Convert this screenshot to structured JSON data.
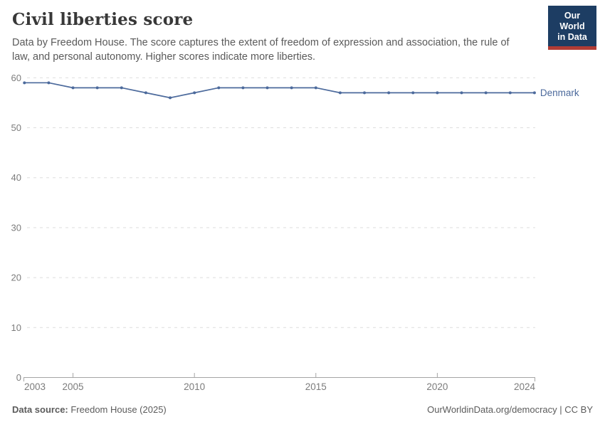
{
  "header": {
    "title": "Civil liberties score",
    "subtitle": "Data by Freedom House. The score captures the extent of freedom of expression and association, the rule of law, and personal autonomy. Higher scores indicate more liberties.",
    "logo": {
      "line1": "Our World",
      "line2": "in Data"
    }
  },
  "chart_data": {
    "type": "line",
    "title": "Civil liberties score",
    "x": [
      2003,
      2004,
      2005,
      2006,
      2007,
      2008,
      2009,
      2010,
      2011,
      2012,
      2013,
      2014,
      2015,
      2016,
      2017,
      2018,
      2019,
      2020,
      2021,
      2022,
      2023,
      2024
    ],
    "series": [
      {
        "name": "Denmark",
        "values": [
          59,
          59,
          58,
          58,
          58,
          57,
          56,
          57,
          58,
          58,
          58,
          58,
          58,
          57,
          57,
          57,
          57,
          57,
          57,
          57,
          57,
          57
        ]
      }
    ],
    "xlabel": "",
    "ylabel": "",
    "ylim": [
      0,
      60
    ],
    "xlim": [
      2003,
      2024
    ],
    "yticks": [
      0,
      10,
      20,
      30,
      40,
      50,
      60
    ],
    "xticks": [
      2003,
      2005,
      2010,
      2015,
      2020,
      2024
    ],
    "grid": "horizontal-dashed",
    "legend_position": "end-of-line"
  },
  "footer": {
    "source_label": "Data source:",
    "source_value": " Freedom House (2025)",
    "link": "OurWorldinData.org/democracy | CC BY"
  },
  "colors": {
    "line": "#4c6a9c",
    "entity_label": "#4c6a9c",
    "grid": "#dddddd",
    "axis": "#a5a5a5",
    "tick_label": "#7c7c7c",
    "logo_bg": "#1d3d63",
    "logo_red": "#b13c35"
  }
}
